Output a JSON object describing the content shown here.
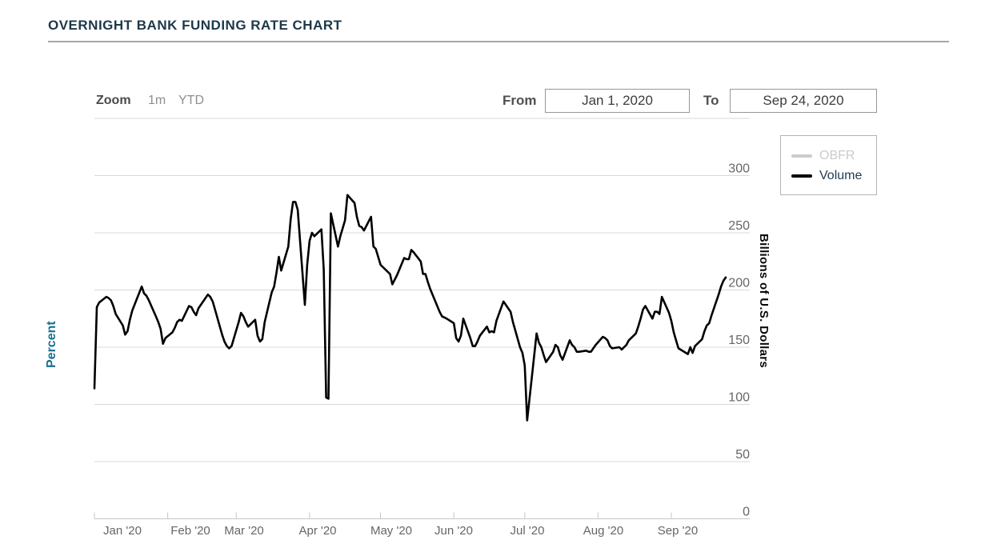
{
  "page": {
    "title": "OVERNIGHT BANK FUNDING RATE CHART"
  },
  "controls": {
    "zoom_label": "Zoom",
    "zoom_options": [
      "1m",
      "YTD"
    ],
    "from_label": "From",
    "from_value": "Jan 1, 2020",
    "to_label": "To",
    "to_value": "Sep 24, 2020"
  },
  "legend": {
    "items": [
      {
        "label": "OBFR",
        "swatch_color": "#cccccc",
        "active": false
      },
      {
        "label": "Volume",
        "swatch_color": "#000000",
        "active": true
      }
    ]
  },
  "axes": {
    "left_title": "Percent",
    "right_title": "Billions of U.S. Dollars"
  },
  "colors": {
    "title_text": "#1e3849",
    "percent_title": "#17708f",
    "volume_line": "#000000",
    "obfr_disabled": "#cccccc",
    "gridline": "#d8d8d8",
    "axis_text": "#666666"
  },
  "chart_data": {
    "type": "line",
    "x_axis_type": "datetime",
    "x_range": [
      "2020-01-01",
      "2020-09-24"
    ],
    "ylim": [
      0,
      350
    ],
    "grid": true,
    "legend_position": "top-right",
    "y_axis_title": "Billions of U.S. Dollars",
    "y_ticks": [
      0,
      50,
      100,
      150,
      200,
      250,
      300
    ],
    "x_tick_labels": [
      "Jan '20",
      "Feb '20",
      "Mar '20",
      "Apr '20",
      "May '20",
      "Jun '20",
      "Jul '20",
      "Aug '20",
      "Sep '20"
    ],
    "x_tick_dates": [
      "2020-01-01",
      "2020-02-01",
      "2020-03-01",
      "2020-04-01",
      "2020-05-01",
      "2020-06-01",
      "2020-07-01",
      "2020-08-01",
      "2020-09-01"
    ],
    "series": [
      {
        "name": "OBFR",
        "visible": false,
        "color": "#cccccc",
        "points": []
      },
      {
        "name": "Volume",
        "visible": true,
        "color": "#000000",
        "points": [
          [
            "2020-01-01",
            114
          ],
          [
            "2020-01-02",
            185
          ],
          [
            "2020-01-03",
            189
          ],
          [
            "2020-01-06",
            194
          ],
          [
            "2020-01-07",
            193
          ],
          [
            "2020-01-08",
            191
          ],
          [
            "2020-01-09",
            186
          ],
          [
            "2020-01-10",
            179
          ],
          [
            "2020-01-13",
            169
          ],
          [
            "2020-01-14",
            161
          ],
          [
            "2020-01-15",
            164
          ],
          [
            "2020-01-16",
            174
          ],
          [
            "2020-01-17",
            182
          ],
          [
            "2020-01-21",
            203
          ],
          [
            "2020-01-22",
            197
          ],
          [
            "2020-01-23",
            195
          ],
          [
            "2020-01-24",
            191
          ],
          [
            "2020-01-27",
            177
          ],
          [
            "2020-01-28",
            172
          ],
          [
            "2020-01-29",
            166
          ],
          [
            "2020-01-30",
            153
          ],
          [
            "2020-01-31",
            158
          ],
          [
            "2020-02-03",
            163
          ],
          [
            "2020-02-04",
            167
          ],
          [
            "2020-02-05",
            172
          ],
          [
            "2020-02-06",
            174
          ],
          [
            "2020-02-07",
            173
          ],
          [
            "2020-02-10",
            186
          ],
          [
            "2020-02-11",
            185
          ],
          [
            "2020-02-12",
            181
          ],
          [
            "2020-02-13",
            178
          ],
          [
            "2020-02-14",
            184
          ],
          [
            "2020-02-18",
            196
          ],
          [
            "2020-02-19",
            194
          ],
          [
            "2020-02-20",
            190
          ],
          [
            "2020-02-21",
            183
          ],
          [
            "2020-02-24",
            161
          ],
          [
            "2020-02-25",
            155
          ],
          [
            "2020-02-26",
            151
          ],
          [
            "2020-02-27",
            149
          ],
          [
            "2020-02-28",
            151
          ],
          [
            "2020-03-02",
            172
          ],
          [
            "2020-03-03",
            180
          ],
          [
            "2020-03-04",
            177
          ],
          [
            "2020-03-05",
            172
          ],
          [
            "2020-03-06",
            168
          ],
          [
            "2020-03-09",
            174
          ],
          [
            "2020-03-10",
            160
          ],
          [
            "2020-03-11",
            155
          ],
          [
            "2020-03-12",
            157
          ],
          [
            "2020-03-13",
            172
          ],
          [
            "2020-03-16",
            198
          ],
          [
            "2020-03-17",
            203
          ],
          [
            "2020-03-18",
            215
          ],
          [
            "2020-03-19",
            229
          ],
          [
            "2020-03-20",
            217
          ],
          [
            "2020-03-23",
            238
          ],
          [
            "2020-03-24",
            262
          ],
          [
            "2020-03-25",
            277
          ],
          [
            "2020-03-26",
            277
          ],
          [
            "2020-03-27",
            270
          ],
          [
            "2020-03-30",
            187
          ],
          [
            "2020-03-31",
            222
          ],
          [
            "2020-04-01",
            243
          ],
          [
            "2020-04-02",
            250
          ],
          [
            "2020-04-03",
            247
          ],
          [
            "2020-04-06",
            253
          ],
          [
            "2020-04-07",
            218
          ],
          [
            "2020-04-08",
            106
          ],
          [
            "2020-04-09",
            105
          ],
          [
            "2020-04-10",
            267
          ],
          [
            "2020-04-13",
            238
          ],
          [
            "2020-04-14",
            247
          ],
          [
            "2020-04-15",
            254
          ],
          [
            "2020-04-16",
            261
          ],
          [
            "2020-04-17",
            283
          ],
          [
            "2020-04-20",
            276
          ],
          [
            "2020-04-21",
            264
          ],
          [
            "2020-04-22",
            256
          ],
          [
            "2020-04-23",
            255
          ],
          [
            "2020-04-24",
            252
          ],
          [
            "2020-04-27",
            264
          ],
          [
            "2020-04-28",
            238
          ],
          [
            "2020-04-29",
            236
          ],
          [
            "2020-04-30",
            229
          ],
          [
            "2020-05-01",
            222
          ],
          [
            "2020-05-04",
            216
          ],
          [
            "2020-05-05",
            214
          ],
          [
            "2020-05-06",
            205
          ],
          [
            "2020-05-07",
            209
          ],
          [
            "2020-05-08",
            213
          ],
          [
            "2020-05-11",
            228
          ],
          [
            "2020-05-12",
            227
          ],
          [
            "2020-05-13",
            227
          ],
          [
            "2020-05-14",
            235
          ],
          [
            "2020-05-15",
            233
          ],
          [
            "2020-05-18",
            225
          ],
          [
            "2020-05-19",
            214
          ],
          [
            "2020-05-20",
            214
          ],
          [
            "2020-05-21",
            207
          ],
          [
            "2020-05-22",
            201
          ],
          [
            "2020-05-26",
            181
          ],
          [
            "2020-05-27",
            177
          ],
          [
            "2020-05-28",
            176
          ],
          [
            "2020-05-29",
            175
          ],
          [
            "2020-06-01",
            171
          ],
          [
            "2020-06-02",
            158
          ],
          [
            "2020-06-03",
            155
          ],
          [
            "2020-06-04",
            160
          ],
          [
            "2020-06-05",
            175
          ],
          [
            "2020-06-08",
            158
          ],
          [
            "2020-06-09",
            151
          ],
          [
            "2020-06-10",
            151
          ],
          [
            "2020-06-11",
            155
          ],
          [
            "2020-06-12",
            160
          ],
          [
            "2020-06-15",
            168
          ],
          [
            "2020-06-16",
            163
          ],
          [
            "2020-06-17",
            164
          ],
          [
            "2020-06-18",
            163
          ],
          [
            "2020-06-19",
            173
          ],
          [
            "2020-06-22",
            190
          ],
          [
            "2020-06-23",
            187
          ],
          [
            "2020-06-24",
            184
          ],
          [
            "2020-06-25",
            181
          ],
          [
            "2020-06-26",
            172
          ],
          [
            "2020-06-29",
            150
          ],
          [
            "2020-06-30",
            145
          ],
          [
            "2020-07-01",
            134
          ],
          [
            "2020-07-02",
            86
          ],
          [
            "2020-07-06",
            162
          ],
          [
            "2020-07-07",
            154
          ],
          [
            "2020-07-08",
            150
          ],
          [
            "2020-07-09",
            143
          ],
          [
            "2020-07-10",
            137
          ],
          [
            "2020-07-13",
            146
          ],
          [
            "2020-07-14",
            152
          ],
          [
            "2020-07-15",
            150
          ],
          [
            "2020-07-16",
            143
          ],
          [
            "2020-07-17",
            139
          ],
          [
            "2020-07-20",
            156
          ],
          [
            "2020-07-21",
            152
          ],
          [
            "2020-07-22",
            150
          ],
          [
            "2020-07-23",
            146
          ],
          [
            "2020-07-24",
            146
          ],
          [
            "2020-07-27",
            147
          ],
          [
            "2020-07-28",
            146
          ],
          [
            "2020-07-29",
            146
          ],
          [
            "2020-07-30",
            149
          ],
          [
            "2020-07-31",
            152
          ],
          [
            "2020-08-03",
            159
          ],
          [
            "2020-08-04",
            158
          ],
          [
            "2020-08-05",
            156
          ],
          [
            "2020-08-06",
            151
          ],
          [
            "2020-08-07",
            149
          ],
          [
            "2020-08-10",
            150
          ],
          [
            "2020-08-11",
            148
          ],
          [
            "2020-08-12",
            150
          ],
          [
            "2020-08-13",
            152
          ],
          [
            "2020-08-14",
            156
          ],
          [
            "2020-08-17",
            162
          ],
          [
            "2020-08-18",
            168
          ],
          [
            "2020-08-19",
            175
          ],
          [
            "2020-08-20",
            183
          ],
          [
            "2020-08-21",
            186
          ],
          [
            "2020-08-24",
            175
          ],
          [
            "2020-08-25",
            181
          ],
          [
            "2020-08-26",
            181
          ],
          [
            "2020-08-27",
            179
          ],
          [
            "2020-08-28",
            194
          ],
          [
            "2020-08-31",
            180
          ],
          [
            "2020-09-01",
            173
          ],
          [
            "2020-09-02",
            163
          ],
          [
            "2020-09-03",
            156
          ],
          [
            "2020-09-04",
            149
          ],
          [
            "2020-09-08",
            144
          ],
          [
            "2020-09-09",
            150
          ],
          [
            "2020-09-10",
            145
          ],
          [
            "2020-09-11",
            151
          ],
          [
            "2020-09-14",
            157
          ],
          [
            "2020-09-15",
            164
          ],
          [
            "2020-09-16",
            169
          ],
          [
            "2020-09-17",
            171
          ],
          [
            "2020-09-18",
            178
          ],
          [
            "2020-09-21",
            196
          ],
          [
            "2020-09-22",
            203
          ],
          [
            "2020-09-23",
            208
          ],
          [
            "2020-09-24",
            211
          ]
        ]
      }
    ]
  }
}
